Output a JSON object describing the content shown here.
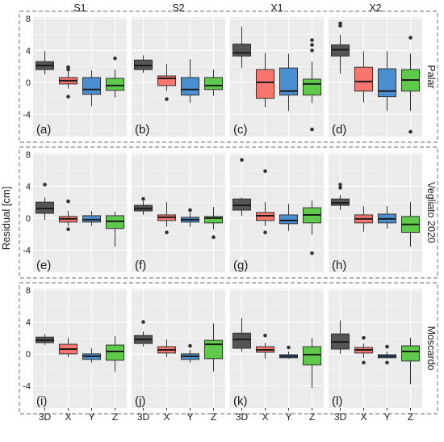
{
  "figure": {
    "ylabel": "Residual [cm]",
    "colors": {
      "3D": "#555555",
      "X": "#f8766d",
      "Y": "#4a8fd1",
      "Z": "#5ec94a",
      "panel_bg": "#ebebeb",
      "grid": "#ffffff",
      "frame_dash": "#888888"
    }
  },
  "chart_data": {
    "type": "boxplot",
    "ylabel": "Residual [cm]",
    "ylim": [
      -6.8,
      8.2
    ],
    "yticks": [
      "-4",
      "0",
      "4",
      "8"
    ],
    "columns": [
      "S1",
      "S2",
      "X1",
      "X2"
    ],
    "rows": [
      "Palar",
      "Vegliato 2020",
      "Moscardo"
    ],
    "categories": [
      "3D",
      "X",
      "Y",
      "Z"
    ],
    "panels": [
      {
        "label": "(a)",
        "row": 0,
        "col": 0,
        "boxes": [
          {
            "cat": "3D",
            "q1": 1.6,
            "med": 2.1,
            "q3": 2.6,
            "lo": 1.0,
            "hi": 3.9,
            "out": []
          },
          {
            "cat": "X",
            "q1": -0.2,
            "med": 0.2,
            "q3": 0.6,
            "lo": -0.8,
            "hi": 1.5,
            "out": [
              1.9,
              1.6,
              -1.8
            ]
          },
          {
            "cat": "Y",
            "q1": -1.5,
            "med": -0.9,
            "q3": 0.6,
            "lo": -3.0,
            "hi": 1.5,
            "out": []
          },
          {
            "cat": "Z",
            "q1": -1.0,
            "med": -0.4,
            "q3": 0.5,
            "lo": -1.9,
            "hi": 1.6,
            "out": [
              3.0
            ]
          }
        ]
      },
      {
        "label": "(b)",
        "row": 0,
        "col": 1,
        "boxes": [
          {
            "cat": "3D",
            "q1": 1.6,
            "med": 2.1,
            "q3": 2.8,
            "lo": 1.2,
            "hi": 3.4,
            "out": []
          },
          {
            "cat": "X",
            "q1": -0.4,
            "med": 0.5,
            "q3": 0.8,
            "lo": -1.1,
            "hi": 2.3,
            "out": [
              -2.1
            ]
          },
          {
            "cat": "Y",
            "q1": -1.6,
            "med": -0.9,
            "q3": 0.6,
            "lo": -2.6,
            "hi": 2.9,
            "out": []
          },
          {
            "cat": "Z",
            "q1": -0.9,
            "med": -0.4,
            "q3": 0.6,
            "lo": -1.7,
            "hi": 1.6,
            "out": []
          }
        ]
      },
      {
        "label": "(c)",
        "row": 0,
        "col": 2,
        "boxes": [
          {
            "cat": "3D",
            "q1": 3.3,
            "med": 3.7,
            "q3": 4.8,
            "lo": 1.8,
            "hi": 7.0,
            "out": []
          },
          {
            "cat": "X",
            "q1": -2.0,
            "med": 0.0,
            "q3": 1.6,
            "lo": -3.1,
            "hi": 3.7,
            "out": []
          },
          {
            "cat": "Y",
            "q1": -1.6,
            "med": -1.1,
            "q3": 1.8,
            "lo": -3.6,
            "hi": 3.6,
            "out": []
          },
          {
            "cat": "Z",
            "q1": -1.6,
            "med": -0.2,
            "q3": 0.4,
            "lo": -2.6,
            "hi": 2.6,
            "out": [
              5.3,
              4.7,
              4.0,
              -5.9
            ]
          }
        ]
      },
      {
        "label": "(d)",
        "row": 0,
        "col": 3,
        "boxes": [
          {
            "cat": "3D",
            "q1": 3.3,
            "med": 4.1,
            "q3": 4.7,
            "lo": 1.1,
            "hi": 6.0,
            "out": [
              7.4,
              7.1
            ]
          },
          {
            "cat": "X",
            "q1": -1.1,
            "med": 0.1,
            "q3": 1.9,
            "lo": -2.5,
            "hi": 3.9,
            "out": []
          },
          {
            "cat": "Y",
            "q1": -1.8,
            "med": -1.1,
            "q3": 1.7,
            "lo": -3.6,
            "hi": 3.9,
            "out": []
          },
          {
            "cat": "Z",
            "q1": -1.1,
            "med": 0.3,
            "q3": 1.6,
            "lo": -3.6,
            "hi": 3.6,
            "out": [
              5.6,
              -6.2
            ]
          }
        ]
      },
      {
        "label": "(e)",
        "row": 1,
        "col": 0,
        "boxes": [
          {
            "cat": "3D",
            "q1": 0.6,
            "med": 1.2,
            "q3": 2.0,
            "lo": -0.2,
            "hi": 2.6,
            "out": [
              4.2
            ]
          },
          {
            "cat": "X",
            "q1": -0.5,
            "med": -0.1,
            "q3": 0.2,
            "lo": -1.0,
            "hi": 0.9,
            "out": [
              2.1,
              -1.4
            ]
          },
          {
            "cat": "Y",
            "q1": -0.5,
            "med": -0.2,
            "q3": 0.3,
            "lo": -1.0,
            "hi": 0.9,
            "out": []
          },
          {
            "cat": "Z",
            "q1": -1.3,
            "med": -0.4,
            "q3": 0.3,
            "lo": -3.6,
            "hi": 0.8,
            "out": []
          }
        ]
      },
      {
        "label": "(f)",
        "row": 1,
        "col": 1,
        "boxes": [
          {
            "cat": "3D",
            "q1": 0.9,
            "med": 1.2,
            "q3": 1.6,
            "lo": 0.4,
            "hi": 2.1,
            "out": [
              2.4
            ]
          },
          {
            "cat": "X",
            "q1": -0.3,
            "med": 0.1,
            "q3": 0.4,
            "lo": -1.1,
            "hi": 2.0,
            "out": [
              -1.8
            ]
          },
          {
            "cat": "Y",
            "q1": -0.5,
            "med": -0.2,
            "q3": 0.1,
            "lo": -1.1,
            "hi": 0.7,
            "out": [
              1.0
            ]
          },
          {
            "cat": "Z",
            "q1": -0.6,
            "med": 0.0,
            "q3": 0.2,
            "lo": -1.4,
            "hi": 1.4,
            "out": [
              -2.4
            ]
          }
        ]
      },
      {
        "label": "(g)",
        "row": 1,
        "col": 2,
        "boxes": [
          {
            "cat": "3D",
            "q1": 1.0,
            "med": 1.6,
            "q3": 2.4,
            "lo": 0.3,
            "hi": 2.6,
            "out": [
              7.3
            ]
          },
          {
            "cat": "X",
            "q1": -0.3,
            "med": 0.3,
            "q3": 0.7,
            "lo": -1.0,
            "hi": 2.0,
            "out": [
              5.9,
              -1.8
            ]
          },
          {
            "cat": "Y",
            "q1": -0.7,
            "med": -0.3,
            "q3": 0.4,
            "lo": -1.6,
            "hi": 1.8,
            "out": []
          },
          {
            "cat": "Z",
            "q1": -0.6,
            "med": 0.4,
            "q3": 1.3,
            "lo": -2.1,
            "hi": 2.2,
            "out": [
              -4.4
            ]
          }
        ]
      },
      {
        "label": "(h)",
        "row": 1,
        "col": 3,
        "boxes": [
          {
            "cat": "3D",
            "q1": 1.6,
            "med": 1.9,
            "q3": 2.4,
            "lo": 1.0,
            "hi": 2.9,
            "out": [
              4.2,
              3.8
            ]
          },
          {
            "cat": "X",
            "q1": -0.6,
            "med": -0.1,
            "q3": 0.4,
            "lo": -1.7,
            "hi": 1.5,
            "out": []
          },
          {
            "cat": "Y",
            "q1": -0.6,
            "med": -0.1,
            "q3": 0.5,
            "lo": -1.3,
            "hi": 1.5,
            "out": []
          },
          {
            "cat": "Z",
            "q1": -1.8,
            "med": -0.8,
            "q3": 0.2,
            "lo": -3.6,
            "hi": 2.0,
            "out": []
          }
        ]
      },
      {
        "label": "(i)",
        "row": 2,
        "col": 0,
        "boxes": [
          {
            "cat": "3D",
            "q1": 1.4,
            "med": 1.7,
            "q3": 2.1,
            "lo": 1.1,
            "hi": 2.5,
            "out": []
          },
          {
            "cat": "X",
            "q1": 0.0,
            "med": 0.6,
            "q3": 1.2,
            "lo": -0.4,
            "hi": 2.0,
            "out": []
          },
          {
            "cat": "Y",
            "q1": -0.7,
            "med": -0.3,
            "q3": 0.0,
            "lo": -1.1,
            "hi": 0.7,
            "out": []
          },
          {
            "cat": "Z",
            "q1": -0.8,
            "med": 0.3,
            "q3": 1.1,
            "lo": -2.2,
            "hi": 2.2,
            "out": []
          }
        ]
      },
      {
        "label": "(j)",
        "row": 2,
        "col": 1,
        "boxes": [
          {
            "cat": "3D",
            "q1": 1.3,
            "med": 1.8,
            "q3": 2.3,
            "lo": 0.9,
            "hi": 2.8,
            "out": [
              4.0
            ]
          },
          {
            "cat": "X",
            "q1": 0.1,
            "med": 0.5,
            "q3": 0.9,
            "lo": -0.4,
            "hi": 1.8,
            "out": []
          },
          {
            "cat": "Y",
            "q1": -0.7,
            "med": -0.3,
            "q3": 0.0,
            "lo": -1.1,
            "hi": 0.5,
            "out": [
              1.0
            ]
          },
          {
            "cat": "Z",
            "q1": -0.6,
            "med": 1.2,
            "q3": 1.7,
            "lo": -2.2,
            "hi": 3.8,
            "out": []
          }
        ]
      },
      {
        "label": "(k)",
        "row": 2,
        "col": 2,
        "boxes": [
          {
            "cat": "3D",
            "q1": 0.7,
            "med": 1.8,
            "q3": 2.6,
            "lo": 0.3,
            "hi": 4.5,
            "out": []
          },
          {
            "cat": "X",
            "q1": 0.2,
            "med": 0.5,
            "q3": 0.9,
            "lo": -0.6,
            "hi": 1.4,
            "out": [
              2.3
            ]
          },
          {
            "cat": "Y",
            "q1": -0.5,
            "med": -0.3,
            "q3": -0.1,
            "lo": -0.6,
            "hi": 0.3,
            "out": [
              0.8
            ]
          },
          {
            "cat": "Z",
            "q1": -1.4,
            "med": -0.1,
            "q3": 0.9,
            "lo": -4.3,
            "hi": 2.0,
            "out": []
          }
        ]
      },
      {
        "label": "(l)",
        "row": 2,
        "col": 3,
        "boxes": [
          {
            "cat": "3D",
            "q1": 0.6,
            "med": 1.5,
            "q3": 2.5,
            "lo": 0.0,
            "hi": 4.2,
            "out": []
          },
          {
            "cat": "X",
            "q1": 0.1,
            "med": 0.5,
            "q3": 0.8,
            "lo": -0.5,
            "hi": 1.3,
            "out": [
              2.0,
              -1.1
            ]
          },
          {
            "cat": "Y",
            "q1": -0.5,
            "med": -0.3,
            "q3": -0.1,
            "lo": -0.6,
            "hi": 0.3,
            "out": [
              0.9,
              -1.1
            ]
          },
          {
            "cat": "Z",
            "q1": -0.9,
            "med": 0.3,
            "q3": 1.0,
            "lo": -3.8,
            "hi": 2.0,
            "out": []
          }
        ]
      }
    ]
  }
}
